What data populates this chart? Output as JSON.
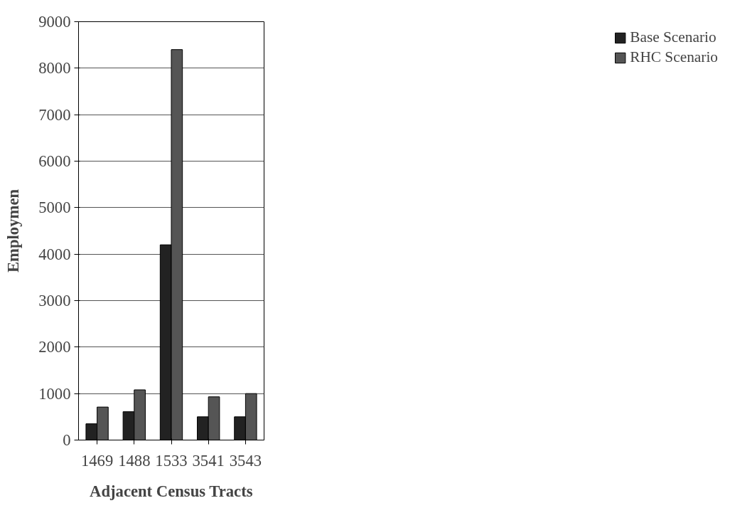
{
  "chart_data": {
    "type": "bar",
    "xlabel": "Adjacent Census Tracts",
    "ylabel": "Employmen",
    "categories": [
      "1469",
      "1488",
      "1533",
      "3541",
      "3543"
    ],
    "series": [
      {
        "name": "Base Scenario",
        "color": "#222222",
        "values": [
          350,
          610,
          4200,
          500,
          500
        ]
      },
      {
        "name": "RHC Scenario",
        "color": "#555555",
        "values": [
          710,
          1080,
          8400,
          930,
          1000
        ]
      }
    ],
    "ylim": [
      0,
      9000
    ],
    "yticks": [
      0,
      1000,
      2000,
      3000,
      4000,
      5000,
      6000,
      7000,
      8000,
      9000
    ],
    "grid": "y",
    "legend": "right"
  }
}
